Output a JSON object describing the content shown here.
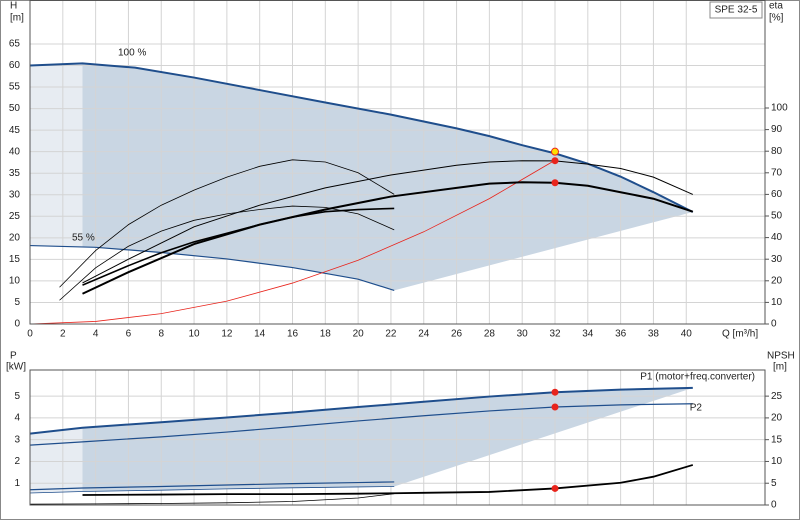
{
  "chart_data": [
    {
      "type": "line",
      "title": "SPE 32-5",
      "ylabel": "H",
      "yunit": "[m]",
      "y2label": "eta",
      "y2unit": "[%]",
      "xlabel": "Q [m³/h]",
      "xlim": [
        0,
        44.8
      ],
      "xticks": [
        0,
        2,
        4,
        6,
        8,
        10,
        12,
        14,
        16,
        18,
        20,
        22,
        24,
        26,
        28,
        30,
        32,
        34,
        36,
        38,
        40
      ],
      "ylim": [
        0,
        75.2
      ],
      "yticks": [
        0,
        5,
        10,
        15,
        20,
        25,
        30,
        35,
        40,
        45,
        50,
        55,
        60,
        65
      ],
      "y2lim": [
        0,
        150
      ],
      "y2ticks": [
        0,
        10,
        20,
        30,
        40,
        50,
        60,
        70,
        80,
        90,
        100
      ],
      "grid": true,
      "series": [
        {
          "name": "100 %",
          "color": "#1f4e8c",
          "width": 2,
          "x": [
            0,
            3.2,
            6.4,
            10,
            14,
            18,
            22,
            26,
            28,
            30,
            32,
            34,
            36,
            38,
            40.4
          ],
          "values": [
            60,
            60.5,
            59.5,
            57.2,
            54.3,
            51.4,
            48.6,
            45.4,
            43.6,
            41.5,
            39.6,
            37.2,
            34.2,
            30.6,
            26
          ]
        },
        {
          "name": "55 %",
          "color": "#1f4e8c",
          "width": 1.2,
          "x": [
            0,
            4,
            8,
            12,
            16,
            20,
            22.2
          ],
          "values": [
            18.2,
            17.8,
            16.6,
            15.1,
            13.1,
            10.4,
            7.8
          ]
        },
        {
          "color": "#e8241c",
          "width": 0.8,
          "x": [
            0,
            4,
            8,
            12,
            16,
            20,
            24,
            28,
            32
          ],
          "values": [
            0,
            0.6,
            2.4,
            5.3,
            9.5,
            14.8,
            21.4,
            29.1,
            38
          ]
        },
        {
          "color": "#000000",
          "width": 0.8,
          "axis": "y2",
          "x": [
            1.8,
            4,
            6,
            8,
            10,
            12,
            14,
            16,
            18,
            20,
            22.2
          ],
          "values": [
            17,
            34,
            46,
            55,
            62,
            68,
            73,
            76,
            75,
            70,
            60
          ]
        },
        {
          "color": "#000000",
          "width": 0.8,
          "axis": "y2",
          "x": [
            1.8,
            4,
            6,
            8,
            10,
            12,
            14,
            16,
            18,
            20,
            22.2
          ],
          "values": [
            11,
            26,
            36,
            43,
            48,
            51,
            53,
            54.6,
            54,
            51,
            43.6
          ]
        },
        {
          "color": "#000000",
          "width": 1.6,
          "axis": "y2",
          "x": [
            3.2,
            6,
            8,
            10,
            12,
            14,
            16,
            18,
            20,
            22.2
          ],
          "values": [
            18,
            27,
            33,
            38,
            42,
            46,
            49.5,
            52,
            53,
            53.5
          ]
        },
        {
          "color": "#000000",
          "width": 1,
          "axis": "y2",
          "x": [
            3.2,
            6,
            10,
            14,
            18,
            22,
            26,
            28,
            30,
            32,
            34,
            36,
            38,
            40.4
          ],
          "values": [
            19,
            30,
            45,
            55,
            63,
            69,
            73.5,
            75,
            75.6,
            75.5,
            74,
            72,
            68,
            60
          ]
        },
        {
          "color": "#000000",
          "width": 2,
          "axis": "y2",
          "x": [
            3.2,
            6,
            10,
            14,
            18,
            22,
            26,
            28,
            30,
            32,
            34,
            36,
            38,
            40.4
          ],
          "values": [
            14,
            24,
            37,
            46,
            53,
            59,
            63,
            65,
            65.6,
            65.4,
            64,
            61,
            58,
            52
          ]
        },
        {
          "color": "#ffdd00",
          "marker": true,
          "x": [
            32
          ],
          "values": [
            40
          ]
        },
        {
          "color": "#e8241c",
          "marker": true,
          "axis": "y2",
          "x": [
            32
          ],
          "values": [
            75.6
          ]
        },
        {
          "color": "#e8241c",
          "marker": true,
          "axis": "y2",
          "x": [
            32
          ],
          "values": [
            65.4
          ]
        }
      ]
    },
    {
      "type": "line",
      "ylabel": "P",
      "yunit": "[kW]",
      "y2label": "NPSH",
      "y2unit": "[m]",
      "xlim": [
        0,
        44.8
      ],
      "ylim": [
        0,
        6.2
      ],
      "yticks": [
        1,
        2,
        3,
        4,
        5
      ],
      "y2lim": [
        0,
        31
      ],
      "y2ticks": [
        0,
        5,
        10,
        15,
        20,
        25
      ],
      "grid": true,
      "series": [
        {
          "name": "P1 (motor+freq.converter)",
          "color": "#1f4e8c",
          "width": 2,
          "x": [
            0,
            3.2,
            8,
            12,
            16,
            20,
            24,
            28,
            32,
            36,
            40.4
          ],
          "values": [
            3.28,
            3.55,
            3.8,
            4.02,
            4.25,
            4.5,
            4.74,
            4.98,
            5.18,
            5.3,
            5.38
          ]
        },
        {
          "name": "P2",
          "color": "#1f4e8c",
          "width": 1.2,
          "x": [
            0,
            3.2,
            8,
            12,
            16,
            20,
            24,
            28,
            32,
            36,
            40.4
          ],
          "values": [
            2.75,
            2.9,
            3.13,
            3.35,
            3.6,
            3.86,
            4.1,
            4.32,
            4.5,
            4.6,
            4.65
          ]
        },
        {
          "color": "#1f4e8c",
          "width": 1.2,
          "x": [
            0,
            3.2,
            8,
            12,
            16,
            20,
            22.2
          ],
          "values": [
            0.7,
            0.78,
            0.85,
            0.92,
            0.98,
            1.03,
            1.06
          ]
        },
        {
          "color": "#1f4e8c",
          "width": 0.8,
          "x": [
            0,
            3.2,
            8,
            12,
            16,
            20,
            22.2
          ],
          "values": [
            0.55,
            0.62,
            0.68,
            0.74,
            0.79,
            0.83,
            0.85
          ]
        },
        {
          "color": "#000000",
          "width": 0.8,
          "axis": "y2",
          "x": [
            0,
            4,
            8,
            12,
            16,
            20,
            22.2
          ],
          "values": [
            0.2,
            0.25,
            0.35,
            0.5,
            0.8,
            1.6,
            2.6
          ]
        },
        {
          "color": "#000000",
          "width": 1.8,
          "axis": "y2",
          "x": [
            3.2,
            8,
            12,
            16,
            20,
            22.2,
            24,
            28,
            32,
            36,
            38,
            40.4
          ],
          "values": [
            2.3,
            2.4,
            2.5,
            2.5,
            2.6,
            2.7,
            2.8,
            3.0,
            3.8,
            5.1,
            6.5,
            9.2
          ]
        },
        {
          "color": "#e8241c",
          "marker": true,
          "x": [
            32
          ],
          "values": [
            5.18
          ]
        },
        {
          "color": "#e8241c",
          "marker": true,
          "x": [
            32
          ],
          "values": [
            4.5
          ]
        },
        {
          "color": "#e8241c",
          "marker": true,
          "axis": "y2",
          "x": [
            32
          ],
          "values": [
            3.8
          ]
        }
      ]
    }
  ]
}
